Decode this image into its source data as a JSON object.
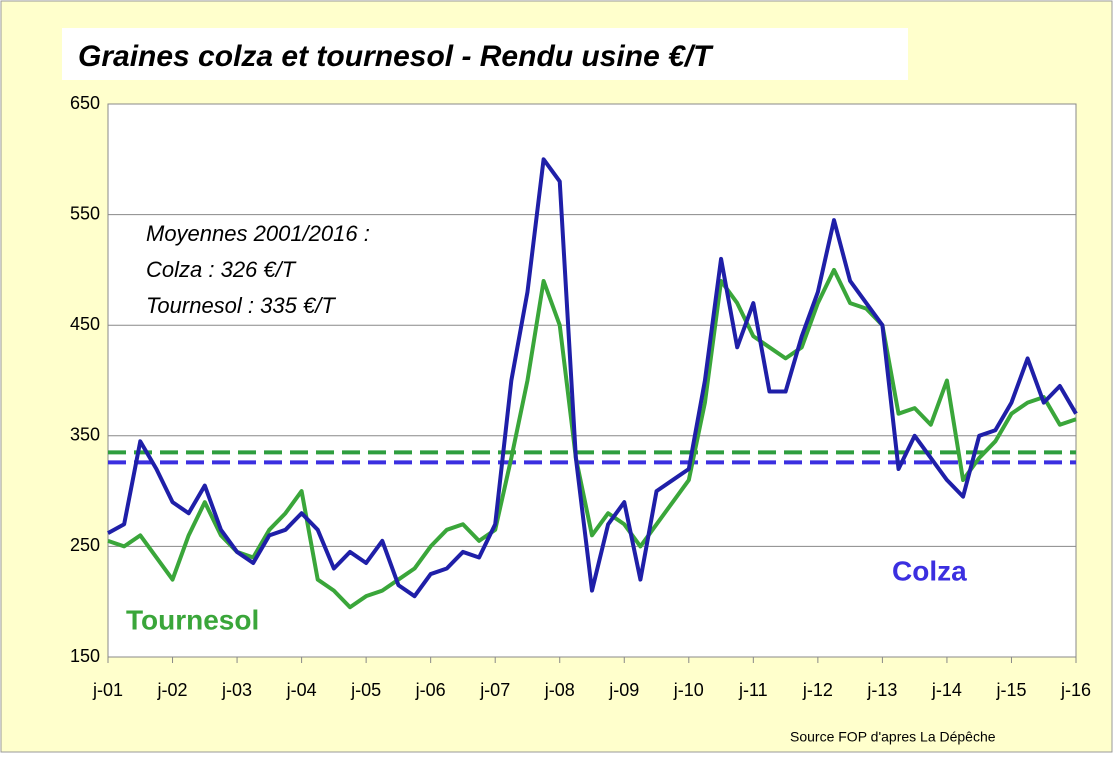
{
  "chart_data": {
    "type": "line",
    "title": "Graines colza et  tournesol - Rendu usine €/T",
    "annotations": [
      "Moyennes 2001/2016 :",
      "Colza : 326 €/T",
      "Tournesol : 335 €/T"
    ],
    "source": "Source FOP d'apres La Dépêche",
    "x": [
      2001,
      2001.25,
      2001.5,
      2001.75,
      2002,
      2002.25,
      2002.5,
      2002.75,
      2003,
      2003.25,
      2003.5,
      2003.75,
      2004,
      2004.25,
      2004.5,
      2004.75,
      2005,
      2005.25,
      2005.5,
      2005.75,
      2006,
      2006.25,
      2006.5,
      2006.75,
      2007,
      2007.25,
      2007.5,
      2007.75,
      2008,
      2008.25,
      2008.5,
      2008.75,
      2009,
      2009.25,
      2009.5,
      2009.75,
      2010,
      2010.25,
      2010.5,
      2010.75,
      2011,
      2011.25,
      2011.5,
      2011.75,
      2012,
      2012.25,
      2012.5,
      2012.75,
      2013,
      2013.25,
      2013.5,
      2013.75,
      2014,
      2014.25,
      2014.5,
      2014.75,
      2015,
      2015.25,
      2015.5,
      2015.75,
      2016
    ],
    "series": [
      {
        "name": "Tournesol",
        "color": "#3aa63a",
        "values": [
          255,
          250,
          260,
          240,
          220,
          260,
          290,
          260,
          245,
          240,
          265,
          280,
          300,
          220,
          210,
          195,
          205,
          210,
          220,
          230,
          250,
          265,
          270,
          255,
          265,
          330,
          400,
          490,
          450,
          330,
          260,
          280,
          270,
          250,
          270,
          290,
          310,
          380,
          490,
          470,
          440,
          430,
          420,
          430,
          470,
          500,
          470,
          465,
          450,
          370,
          375,
          360,
          400,
          310,
          330,
          345,
          370,
          380,
          385,
          360,
          365
        ]
      },
      {
        "name": "Colza",
        "color": "#1f1fa8",
        "values": [
          262,
          270,
          345,
          320,
          290,
          280,
          305,
          265,
          245,
          235,
          260,
          265,
          280,
          265,
          230,
          245,
          235,
          255,
          215,
          205,
          225,
          230,
          245,
          240,
          270,
          400,
          480,
          600,
          580,
          330,
          210,
          270,
          290,
          220,
          300,
          310,
          320,
          400,
          510,
          430,
          470,
          390,
          390,
          440,
          480,
          545,
          490,
          470,
          450,
          320,
          350,
          330,
          310,
          295,
          350,
          355,
          380,
          420,
          380,
          395,
          370
        ]
      }
    ],
    "hlines": [
      {
        "value": 335,
        "color": "#2e9e3e"
      },
      {
        "value": 326,
        "color": "#3b2fe0"
      }
    ],
    "xlim": [
      2001,
      2016
    ],
    "xticks": [
      {
        "value": 2001,
        "label": "j-01"
      },
      {
        "value": 2002,
        "label": "j-02"
      },
      {
        "value": 2003,
        "label": "j-03"
      },
      {
        "value": 2004,
        "label": "j-04"
      },
      {
        "value": 2005,
        "label": "j-05"
      },
      {
        "value": 2006,
        "label": "j-06"
      },
      {
        "value": 2007,
        "label": "j-07"
      },
      {
        "value": 2008,
        "label": "j-08"
      },
      {
        "value": 2009,
        "label": "j-09"
      },
      {
        "value": 2010,
        "label": "j-10"
      },
      {
        "value": 2011,
        "label": "j-11"
      },
      {
        "value": 2012,
        "label": "j-12"
      },
      {
        "value": 2013,
        "label": "j-13"
      },
      {
        "value": 2014,
        "label": "j-14"
      },
      {
        "value": 2015,
        "label": "j-15"
      },
      {
        "value": 2016,
        "label": "j-16"
      }
    ],
    "ylim": [
      150,
      650
    ],
    "yticks": [
      150,
      250,
      350,
      450,
      550,
      650
    ],
    "grid": true
  }
}
